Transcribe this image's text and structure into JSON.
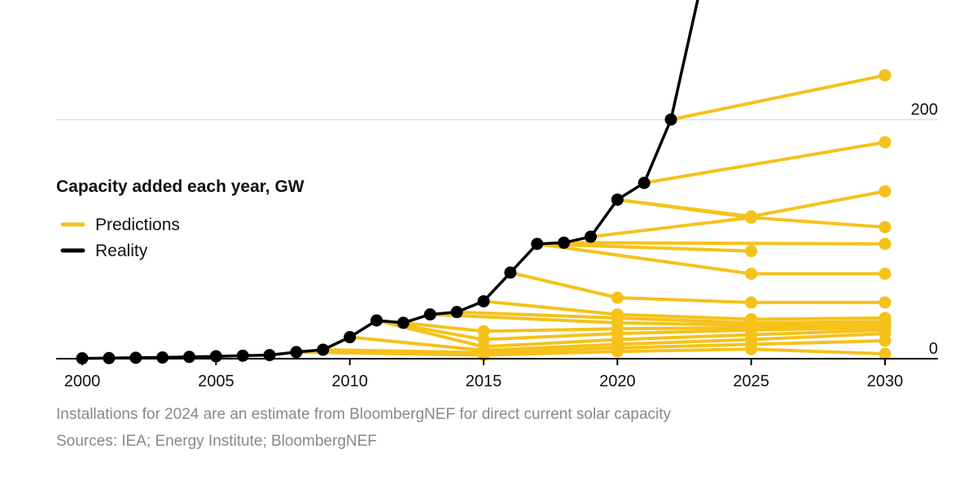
{
  "chart_data": {
    "type": "line",
    "title": "Capacity added each year, GW",
    "xlabel": "",
    "ylabel": "",
    "xlim": [
      1999.5,
      2031.5
    ],
    "ylim": [
      0,
      300
    ],
    "x_ticks": [
      2000,
      2005,
      2010,
      2015,
      2020,
      2025,
      2030
    ],
    "x_tick_labels": [
      "2000",
      "2005",
      "2010",
      "2015",
      "2020",
      "2025",
      "2030"
    ],
    "y_ticks": [
      0,
      200
    ],
    "y_tick_labels": [
      "0",
      "200"
    ],
    "grid": "horizontal",
    "legend": {
      "placement": "left",
      "entries": [
        {
          "name": "Predictions",
          "color": "#F5C21B"
        },
        {
          "name": "Reality",
          "color": "#000000"
        }
      ]
    },
    "series": [
      {
        "name": "Reality",
        "color": "#000000",
        "points": [
          [
            2000,
            0.3
          ],
          [
            2001,
            0.5
          ],
          [
            2002,
            0.8
          ],
          [
            2003,
            1.0
          ],
          [
            2004,
            1.5
          ],
          [
            2005,
            2.0
          ],
          [
            2006,
            2.5
          ],
          [
            2007,
            3.0
          ],
          [
            2008,
            5.5
          ],
          [
            2009,
            7.5
          ],
          [
            2010,
            18.0
          ],
          [
            2011,
            32.0
          ],
          [
            2012,
            30.0
          ],
          [
            2013,
            37.0
          ],
          [
            2014,
            39.0
          ],
          [
            2015,
            48.0
          ],
          [
            2016,
            72.0
          ],
          [
            2017,
            96.0
          ],
          [
            2018,
            97.0
          ],
          [
            2019,
            102.0
          ],
          [
            2020,
            133.0
          ],
          [
            2021,
            147.0
          ],
          [
            2022,
            200.0
          ],
          [
            2023,
            300.0
          ]
        ]
      }
    ],
    "predictions": [
      {
        "points": [
          [
            2022,
            200
          ],
          [
            2030,
            237
          ]
        ]
      },
      {
        "points": [
          [
            2021,
            147
          ],
          [
            2030,
            181
          ]
        ]
      },
      {
        "points": [
          [
            2020,
            133
          ],
          [
            2025,
            119
          ],
          [
            2030,
            140
          ]
        ]
      },
      {
        "points": [
          [
            2020,
            133
          ],
          [
            2025,
            118
          ],
          [
            2030,
            110
          ]
        ]
      },
      {
        "points": [
          [
            2019,
            102
          ],
          [
            2025,
            118
          ]
        ]
      },
      {
        "points": [
          [
            2018,
            97
          ],
          [
            2030,
            96
          ]
        ]
      },
      {
        "points": [
          [
            2017,
            96
          ],
          [
            2025,
            90
          ]
        ]
      },
      {
        "points": [
          [
            2017,
            96
          ],
          [
            2025,
            71
          ],
          [
            2030,
            71
          ]
        ]
      },
      {
        "points": [
          [
            2016,
            72
          ],
          [
            2020,
            51
          ],
          [
            2025,
            47
          ],
          [
            2030,
            47
          ]
        ]
      },
      {
        "points": [
          [
            2015,
            48
          ],
          [
            2020,
            37
          ],
          [
            2025,
            33
          ],
          [
            2030,
            34
          ]
        ]
      },
      {
        "points": [
          [
            2014,
            39
          ],
          [
            2020,
            34
          ],
          [
            2025,
            30
          ],
          [
            2030,
            31
          ]
        ]
      },
      {
        "points": [
          [
            2013,
            37
          ],
          [
            2020,
            30
          ],
          [
            2025,
            28
          ],
          [
            2030,
            29
          ]
        ]
      },
      {
        "points": [
          [
            2012,
            30
          ],
          [
            2015,
            23
          ],
          [
            2020,
            25
          ],
          [
            2025,
            26
          ],
          [
            2030,
            27
          ]
        ]
      },
      {
        "points": [
          [
            2011,
            32
          ],
          [
            2015,
            16
          ],
          [
            2020,
            21
          ],
          [
            2025,
            24
          ],
          [
            2030,
            26
          ]
        ]
      },
      {
        "points": [
          [
            2011,
            32
          ],
          [
            2015,
            10
          ],
          [
            2020,
            16
          ],
          [
            2025,
            20
          ],
          [
            2030,
            24
          ]
        ]
      },
      {
        "points": [
          [
            2010,
            18
          ],
          [
            2015,
            7
          ],
          [
            2020,
            12
          ],
          [
            2025,
            16
          ],
          [
            2030,
            21
          ]
        ]
      },
      {
        "points": [
          [
            2009,
            7.5
          ],
          [
            2015,
            5
          ],
          [
            2020,
            9
          ],
          [
            2025,
            12
          ],
          [
            2030,
            15
          ]
        ]
      },
      {
        "points": [
          [
            2008,
            5.5
          ],
          [
            2015,
            3
          ],
          [
            2020,
            6
          ],
          [
            2025,
            8
          ],
          [
            2030,
            4
          ]
        ]
      }
    ],
    "notes": [
      "Installations for 2024 are an estimate from BloombergNEF for direct current solar capacity",
      "Sources: IEA; Energy Institute; BloombergNEF"
    ]
  }
}
